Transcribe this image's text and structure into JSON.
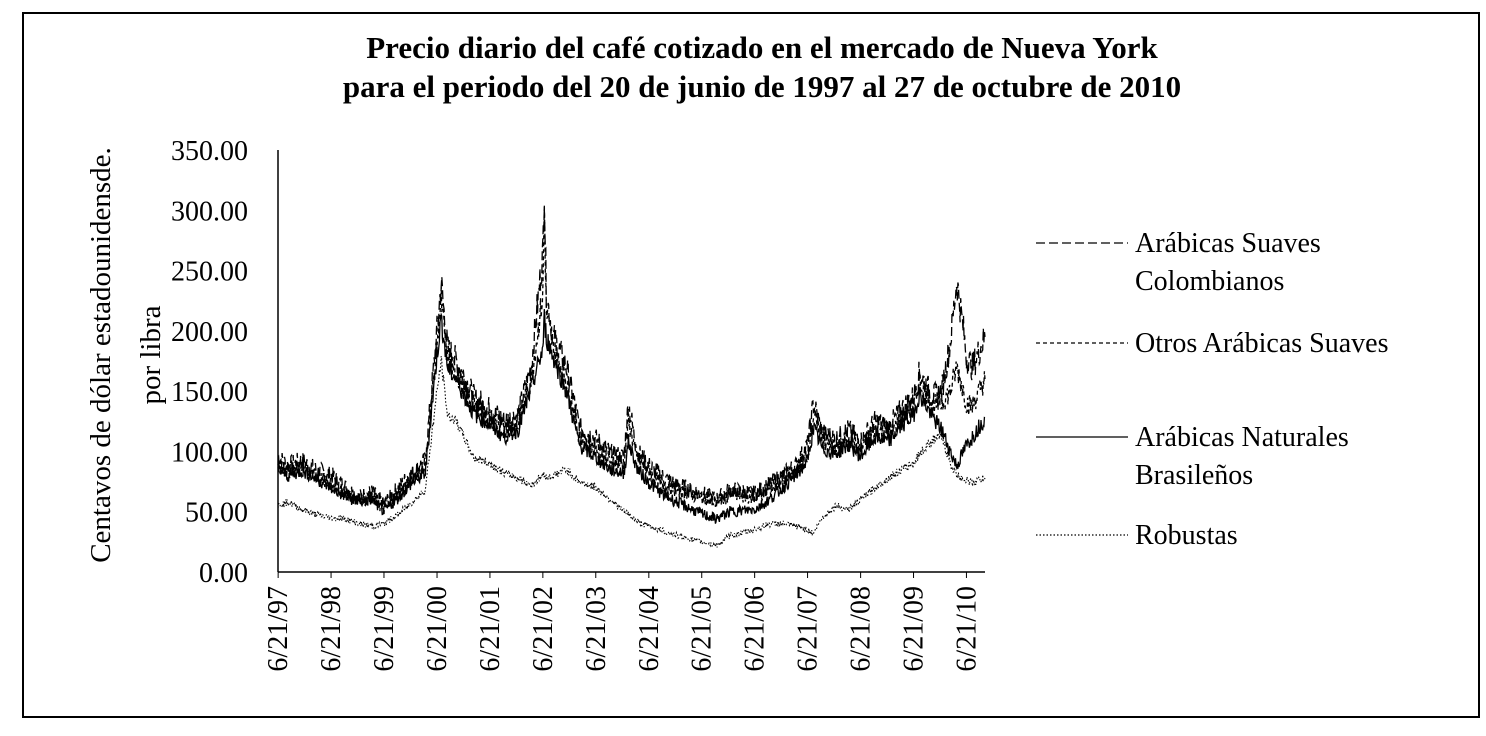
{
  "chart_data": {
    "type": "line",
    "title_lines": [
      "Precio diario del café cotizado en el mercado de Nueva York",
      "para el periodo del 20 de junio de 1997 al 27 de octubre de 2010"
    ],
    "ylabel_lines": [
      "Centavos de dólar estadounidensde.",
      "por libra"
    ],
    "xlabel": "",
    "ylim": [
      0,
      350
    ],
    "y_ticks": [
      "0.00",
      "50.00",
      "100.00",
      "150.00",
      "200.00",
      "250.00",
      "300.00",
      "350.00"
    ],
    "x_range": [
      "1997-06-20",
      "2010-10-27"
    ],
    "x_ticks": [
      {
        "label": "6/21/97",
        "date": "1997-06-21"
      },
      {
        "label": "6/21/98",
        "date": "1998-06-21"
      },
      {
        "label": "6/21/99",
        "date": "1999-06-21"
      },
      {
        "label": "6/21/00",
        "date": "2000-06-21"
      },
      {
        "label": "6/21/01",
        "date": "2001-06-21"
      },
      {
        "label": "6/21/02",
        "date": "2002-06-21"
      },
      {
        "label": "6/21/03",
        "date": "2003-06-21"
      },
      {
        "label": "6/21/04",
        "date": "2004-06-21"
      },
      {
        "label": "6/21/05",
        "date": "2005-06-21"
      },
      {
        "label": "6/21/06",
        "date": "2006-06-21"
      },
      {
        "label": "6/21/07",
        "date": "2007-06-21"
      },
      {
        "label": "6/21/08",
        "date": "2008-06-21"
      },
      {
        "label": "6/21/09",
        "date": "2009-06-21"
      },
      {
        "label": "6/21/10",
        "date": "2010-06-21"
      }
    ],
    "grid": false,
    "legend_position": "right",
    "series": [
      {
        "name_lines": [
          "Arábicas Suaves",
          "Colombianos"
        ],
        "dash": "long-dash",
        "color": "#000000",
        "points": [
          [
            "1997-06-20",
            95
          ],
          [
            "1997-09-01",
            88
          ],
          [
            "1997-12-01",
            92
          ],
          [
            "1998-03-01",
            85
          ],
          [
            "1998-06-21",
            80
          ],
          [
            "1998-10-01",
            70
          ],
          [
            "1999-01-01",
            62
          ],
          [
            "1999-04-01",
            66
          ],
          [
            "1999-06-21",
            56
          ],
          [
            "1999-10-01",
            70
          ],
          [
            "2000-01-01",
            82
          ],
          [
            "2000-04-01",
            92
          ],
          [
            "2000-06-21",
            200
          ],
          [
            "2000-07-20",
            240
          ],
          [
            "2000-09-01",
            185
          ],
          [
            "2000-11-01",
            175
          ],
          [
            "2001-01-01",
            160
          ],
          [
            "2001-03-01",
            145
          ],
          [
            "2001-06-21",
            135
          ],
          [
            "2001-10-01",
            125
          ],
          [
            "2002-01-01",
            130
          ],
          [
            "2002-04-01",
            170
          ],
          [
            "2002-06-21",
            265
          ],
          [
            "2002-07-01",
            320
          ],
          [
            "2002-07-15",
            230
          ],
          [
            "2002-09-01",
            195
          ],
          [
            "2002-12-01",
            170
          ],
          [
            "2003-03-01",
            120
          ],
          [
            "2003-06-21",
            110
          ],
          [
            "2003-10-01",
            98
          ],
          [
            "2004-01-01",
            95
          ],
          [
            "2004-02-01",
            140
          ],
          [
            "2004-04-01",
            100
          ],
          [
            "2004-06-21",
            88
          ],
          [
            "2004-10-01",
            78
          ],
          [
            "2005-01-01",
            72
          ],
          [
            "2005-06-21",
            65
          ],
          [
            "2005-10-01",
            60
          ],
          [
            "2006-01-01",
            68
          ],
          [
            "2006-06-21",
            65
          ],
          [
            "2006-10-01",
            72
          ],
          [
            "2007-01-01",
            80
          ],
          [
            "2007-04-01",
            88
          ],
          [
            "2007-06-21",
            105
          ],
          [
            "2007-08-01",
            140
          ],
          [
            "2007-10-01",
            115
          ],
          [
            "2008-01-01",
            110
          ],
          [
            "2008-04-01",
            118
          ],
          [
            "2008-06-21",
            108
          ],
          [
            "2008-10-01",
            125
          ],
          [
            "2009-01-01",
            120
          ],
          [
            "2009-04-01",
            135
          ],
          [
            "2009-06-21",
            145
          ],
          [
            "2009-08-01",
            165
          ],
          [
            "2009-11-01",
            145
          ],
          [
            "2010-01-01",
            150
          ],
          [
            "2010-03-01",
            190
          ],
          [
            "2010-04-15",
            242
          ],
          [
            "2010-06-01",
            200
          ],
          [
            "2010-06-21",
            178
          ],
          [
            "2010-08-01",
            170
          ],
          [
            "2010-10-27",
            195
          ]
        ]
      },
      {
        "name_lines": [
          "Otros Arábicas Suaves"
        ],
        "dash": "short-dash",
        "color": "#000000",
        "points": [
          [
            "1997-06-20",
            88
          ],
          [
            "1997-09-01",
            82
          ],
          [
            "1997-12-01",
            88
          ],
          [
            "1998-03-01",
            80
          ],
          [
            "1998-06-21",
            72
          ],
          [
            "1998-10-01",
            65
          ],
          [
            "1999-01-01",
            60
          ],
          [
            "1999-04-01",
            62
          ],
          [
            "1999-06-21",
            52
          ],
          [
            "1999-10-01",
            65
          ],
          [
            "2000-01-01",
            78
          ],
          [
            "2000-04-01",
            86
          ],
          [
            "2000-06-21",
            190
          ],
          [
            "2000-07-20",
            225
          ],
          [
            "2000-09-01",
            175
          ],
          [
            "2000-11-01",
            165
          ],
          [
            "2001-01-01",
            150
          ],
          [
            "2001-03-01",
            138
          ],
          [
            "2001-06-21",
            128
          ],
          [
            "2001-10-01",
            118
          ],
          [
            "2002-01-01",
            122
          ],
          [
            "2002-04-01",
            160
          ],
          [
            "2002-06-21",
            230
          ],
          [
            "2002-07-01",
            305
          ],
          [
            "2002-07-15",
            215
          ],
          [
            "2002-09-01",
            185
          ],
          [
            "2002-12-01",
            160
          ],
          [
            "2003-03-01",
            112
          ],
          [
            "2003-06-21",
            102
          ],
          [
            "2003-10-01",
            92
          ],
          [
            "2004-01-01",
            90
          ],
          [
            "2004-02-01",
            125
          ],
          [
            "2004-04-01",
            95
          ],
          [
            "2004-06-21",
            82
          ],
          [
            "2004-10-01",
            72
          ],
          [
            "2005-01-01",
            68
          ],
          [
            "2005-06-21",
            62
          ],
          [
            "2005-10-01",
            58
          ],
          [
            "2006-01-01",
            64
          ],
          [
            "2006-06-21",
            62
          ],
          [
            "2006-10-01",
            68
          ],
          [
            "2007-01-01",
            76
          ],
          [
            "2007-04-01",
            84
          ],
          [
            "2007-06-21",
            98
          ],
          [
            "2007-08-01",
            130
          ],
          [
            "2007-10-01",
            108
          ],
          [
            "2008-01-01",
            104
          ],
          [
            "2008-04-01",
            112
          ],
          [
            "2008-06-21",
            102
          ],
          [
            "2008-10-01",
            118
          ],
          [
            "2009-01-01",
            114
          ],
          [
            "2009-04-01",
            128
          ],
          [
            "2009-06-21",
            138
          ],
          [
            "2009-08-01",
            158
          ],
          [
            "2009-11-01",
            138
          ],
          [
            "2010-01-01",
            140
          ],
          [
            "2010-03-01",
            150
          ],
          [
            "2010-04-15",
            170
          ],
          [
            "2010-06-01",
            150
          ],
          [
            "2010-06-21",
            140
          ],
          [
            "2010-08-01",
            138
          ],
          [
            "2010-10-27",
            160
          ]
        ]
      },
      {
        "name_lines": [
          "Arábicas Naturales",
          "Brasileños"
        ],
        "dash": "solid",
        "color": "#000000",
        "points": [
          [
            "1997-06-20",
            85
          ],
          [
            "1997-09-01",
            80
          ],
          [
            "1997-12-01",
            84
          ],
          [
            "1998-03-01",
            78
          ],
          [
            "1998-06-21",
            70
          ],
          [
            "1998-10-01",
            62
          ],
          [
            "1999-01-01",
            58
          ],
          [
            "1999-04-01",
            60
          ],
          [
            "1999-06-21",
            50
          ],
          [
            "1999-10-01",
            62
          ],
          [
            "2000-01-01",
            74
          ],
          [
            "2000-04-01",
            82
          ],
          [
            "2000-06-21",
            180
          ],
          [
            "2000-07-20",
            210
          ],
          [
            "2000-09-01",
            170
          ],
          [
            "2000-11-01",
            160
          ],
          [
            "2001-01-01",
            145
          ],
          [
            "2001-03-01",
            132
          ],
          [
            "2001-06-21",
            122
          ],
          [
            "2001-10-01",
            112
          ],
          [
            "2002-01-01",
            118
          ],
          [
            "2002-04-01",
            152
          ],
          [
            "2002-06-21",
            185
          ],
          [
            "2002-07-01",
            210
          ],
          [
            "2002-07-15",
            195
          ],
          [
            "2002-09-01",
            178
          ],
          [
            "2002-12-01",
            150
          ],
          [
            "2003-03-01",
            105
          ],
          [
            "2003-06-21",
            95
          ],
          [
            "2003-10-01",
            85
          ],
          [
            "2004-01-01",
            82
          ],
          [
            "2004-02-01",
            108
          ],
          [
            "2004-04-01",
            86
          ],
          [
            "2004-06-21",
            74
          ],
          [
            "2004-10-01",
            64
          ],
          [
            "2005-01-01",
            58
          ],
          [
            "2005-06-21",
            48
          ],
          [
            "2005-10-01",
            44
          ],
          [
            "2006-01-01",
            50
          ],
          [
            "2006-06-21",
            52
          ],
          [
            "2006-10-01",
            60
          ],
          [
            "2007-01-01",
            70
          ],
          [
            "2007-04-01",
            80
          ],
          [
            "2007-06-21",
            92
          ],
          [
            "2007-08-01",
            120
          ],
          [
            "2007-10-01",
            102
          ],
          [
            "2008-01-01",
            98
          ],
          [
            "2008-04-01",
            106
          ],
          [
            "2008-06-21",
            96
          ],
          [
            "2008-10-01",
            112
          ],
          [
            "2009-01-01",
            108
          ],
          [
            "2009-04-01",
            122
          ],
          [
            "2009-06-21",
            130
          ],
          [
            "2009-08-01",
            148
          ],
          [
            "2009-11-01",
            128
          ],
          [
            "2010-01-01",
            118
          ],
          [
            "2010-03-01",
            100
          ],
          [
            "2010-04-15",
            88
          ],
          [
            "2010-06-01",
            100
          ],
          [
            "2010-06-21",
            105
          ],
          [
            "2010-08-01",
            112
          ],
          [
            "2010-10-27",
            128
          ]
        ]
      },
      {
        "name_lines": [
          "Robustas"
        ],
        "dash": "dotted",
        "color": "#000000",
        "points": [
          [
            "1997-06-20",
            55
          ],
          [
            "1997-09-01",
            58
          ],
          [
            "1997-12-01",
            52
          ],
          [
            "1998-03-01",
            48
          ],
          [
            "1998-06-21",
            45
          ],
          [
            "1998-10-01",
            44
          ],
          [
            "1999-01-01",
            40
          ],
          [
            "1999-04-01",
            38
          ],
          [
            "1999-06-21",
            40
          ],
          [
            "1999-10-01",
            48
          ],
          [
            "2000-01-01",
            58
          ],
          [
            "2000-04-01",
            68
          ],
          [
            "2000-06-21",
            150
          ],
          [
            "2000-07-20",
            175
          ],
          [
            "2000-09-01",
            130
          ],
          [
            "2000-11-01",
            125
          ],
          [
            "2001-01-01",
            110
          ],
          [
            "2001-03-01",
            95
          ],
          [
            "2001-06-21",
            90
          ],
          [
            "2001-10-01",
            82
          ],
          [
            "2002-01-01",
            78
          ],
          [
            "2002-04-01",
            72
          ],
          [
            "2002-06-21",
            80
          ],
          [
            "2002-07-01",
            82
          ],
          [
            "2002-07-15",
            78
          ],
          [
            "2002-09-01",
            80
          ],
          [
            "2002-12-01",
            85
          ],
          [
            "2003-03-01",
            75
          ],
          [
            "2003-06-21",
            70
          ],
          [
            "2003-10-01",
            60
          ],
          [
            "2004-01-01",
            50
          ],
          [
            "2004-02-01",
            48
          ],
          [
            "2004-04-01",
            42
          ],
          [
            "2004-06-21",
            38
          ],
          [
            "2004-10-01",
            34
          ],
          [
            "2005-01-01",
            30
          ],
          [
            "2005-06-21",
            25
          ],
          [
            "2005-10-01",
            22
          ],
          [
            "2006-01-01",
            30
          ],
          [
            "2006-06-21",
            35
          ],
          [
            "2006-10-01",
            40
          ],
          [
            "2007-01-01",
            40
          ],
          [
            "2007-04-01",
            38
          ],
          [
            "2007-06-21",
            35
          ],
          [
            "2007-08-01",
            32
          ],
          [
            "2007-10-01",
            45
          ],
          [
            "2008-01-01",
            55
          ],
          [
            "2008-04-01",
            52
          ],
          [
            "2008-06-21",
            60
          ],
          [
            "2008-10-01",
            70
          ],
          [
            "2009-01-01",
            78
          ],
          [
            "2009-04-01",
            85
          ],
          [
            "2009-06-21",
            90
          ],
          [
            "2009-08-01",
            98
          ],
          [
            "2009-11-01",
            110
          ],
          [
            "2010-01-01",
            112
          ],
          [
            "2010-03-01",
            90
          ],
          [
            "2010-04-15",
            80
          ],
          [
            "2010-06-01",
            78
          ],
          [
            "2010-06-21",
            76
          ],
          [
            "2010-08-01",
            74
          ],
          [
            "2010-10-27",
            78
          ]
        ]
      }
    ]
  }
}
